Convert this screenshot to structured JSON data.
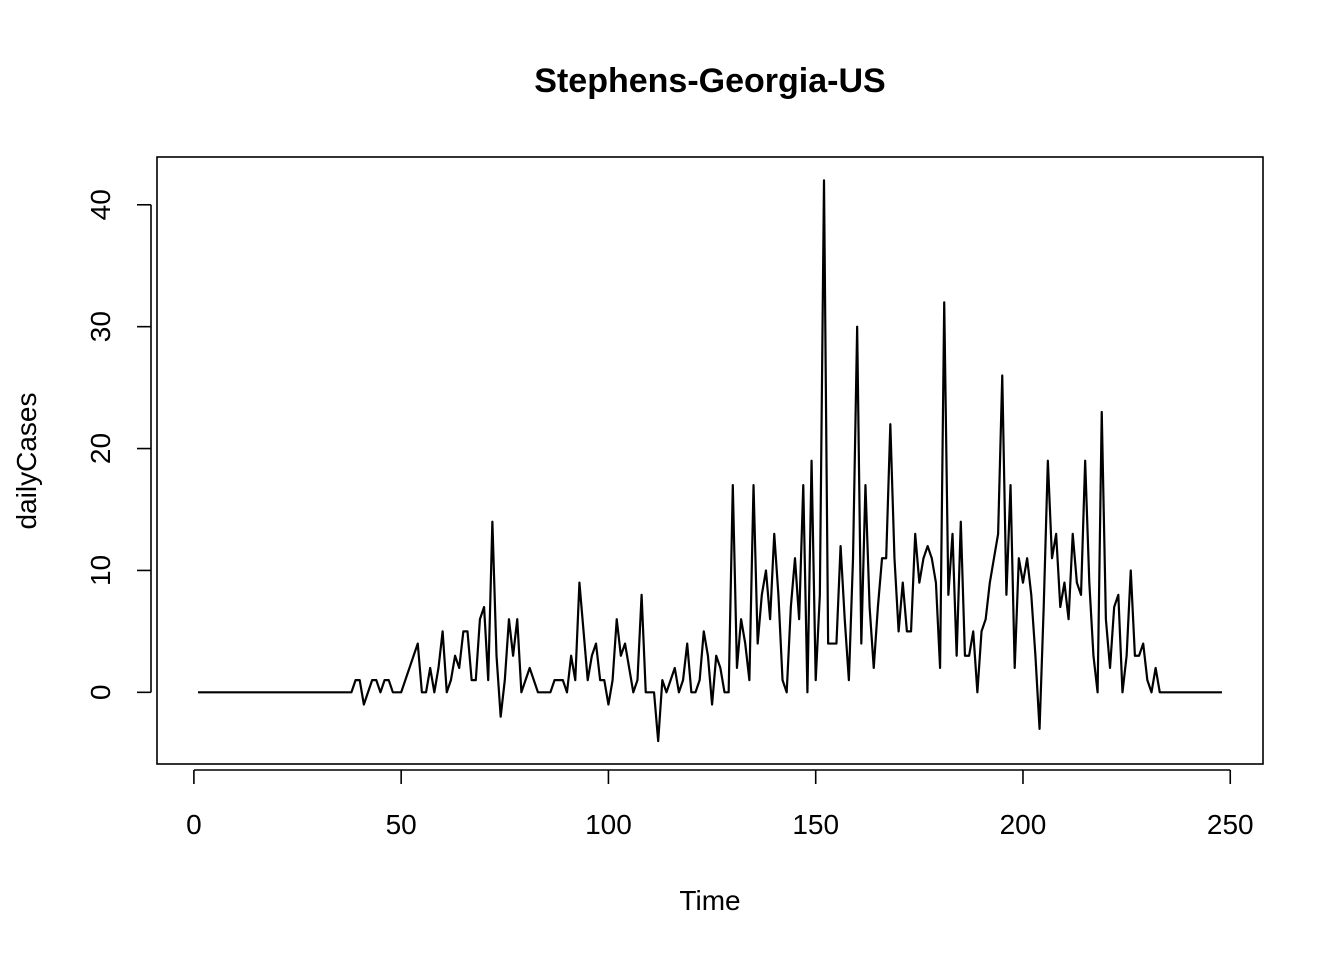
{
  "chart_data": {
    "type": "line",
    "title": "Stephens-Georgia-US",
    "xlabel": "Time",
    "ylabel": "dailyCases",
    "xlim": [
      -8.9,
      257.9
    ],
    "ylim": [
      -5.88,
      43.92
    ],
    "x_ticks": [
      0,
      50,
      100,
      150,
      200,
      250
    ],
    "y_ticks": [
      0,
      10,
      20,
      30,
      40
    ],
    "grid": false,
    "series": [
      {
        "x_start": 1,
        "values": [
          0,
          0,
          0,
          0,
          0,
          0,
          0,
          0,
          0,
          0,
          0,
          0,
          0,
          0,
          0,
          0,
          0,
          0,
          0,
          0,
          0,
          0,
          0,
          0,
          0,
          0,
          0,
          0,
          0,
          0,
          0,
          0,
          0,
          0,
          0,
          0,
          0,
          0,
          1,
          1,
          -1,
          0,
          1,
          1,
          0,
          1,
          1,
          0,
          0,
          0,
          1,
          2,
          3,
          4,
          0,
          0,
          2,
          0,
          2,
          5,
          0,
          1,
          3,
          2,
          5,
          5,
          1,
          1,
          6,
          7,
          1,
          14,
          3,
          -2,
          1,
          6,
          3,
          6,
          0,
          1,
          2,
          1,
          0,
          0,
          0,
          0,
          1,
          1,
          1,
          0,
          3,
          1,
          9,
          5,
          1,
          3,
          4,
          1,
          1,
          -1,
          1,
          6,
          3,
          4,
          2,
          0,
          1,
          8,
          0,
          0,
          0,
          -4,
          1,
          0,
          1,
          2,
          0,
          1,
          4,
          0,
          0,
          1,
          5,
          3,
          -1,
          3,
          2,
          0,
          0,
          17,
          2,
          6,
          4,
          1,
          17,
          4,
          8,
          10,
          6,
          13,
          8,
          1,
          0,
          7,
          11,
          6,
          17,
          0,
          19,
          1,
          8,
          42,
          4,
          4,
          4,
          12,
          6,
          1,
          11,
          30,
          4,
          17,
          7,
          2,
          7,
          11,
          11,
          22,
          11,
          5,
          9,
          5,
          5,
          13,
          9,
          11,
          12,
          11,
          9,
          2,
          32,
          8,
          13,
          3,
          14,
          3,
          3,
          5,
          0,
          5,
          6,
          9,
          11,
          13,
          26,
          8,
          17,
          2,
          11,
          9,
          11,
          8,
          3,
          -3,
          7,
          19,
          11,
          13,
          7,
          9,
          6,
          13,
          9,
          8,
          19,
          9,
          3,
          0,
          23,
          6,
          2,
          7,
          8,
          0,
          3,
          10,
          3,
          3,
          4,
          1,
          0,
          2,
          0,
          0,
          0,
          0,
          0,
          0,
          0,
          0,
          0,
          0,
          0,
          0,
          0,
          0,
          0,
          0
        ]
      }
    ]
  }
}
